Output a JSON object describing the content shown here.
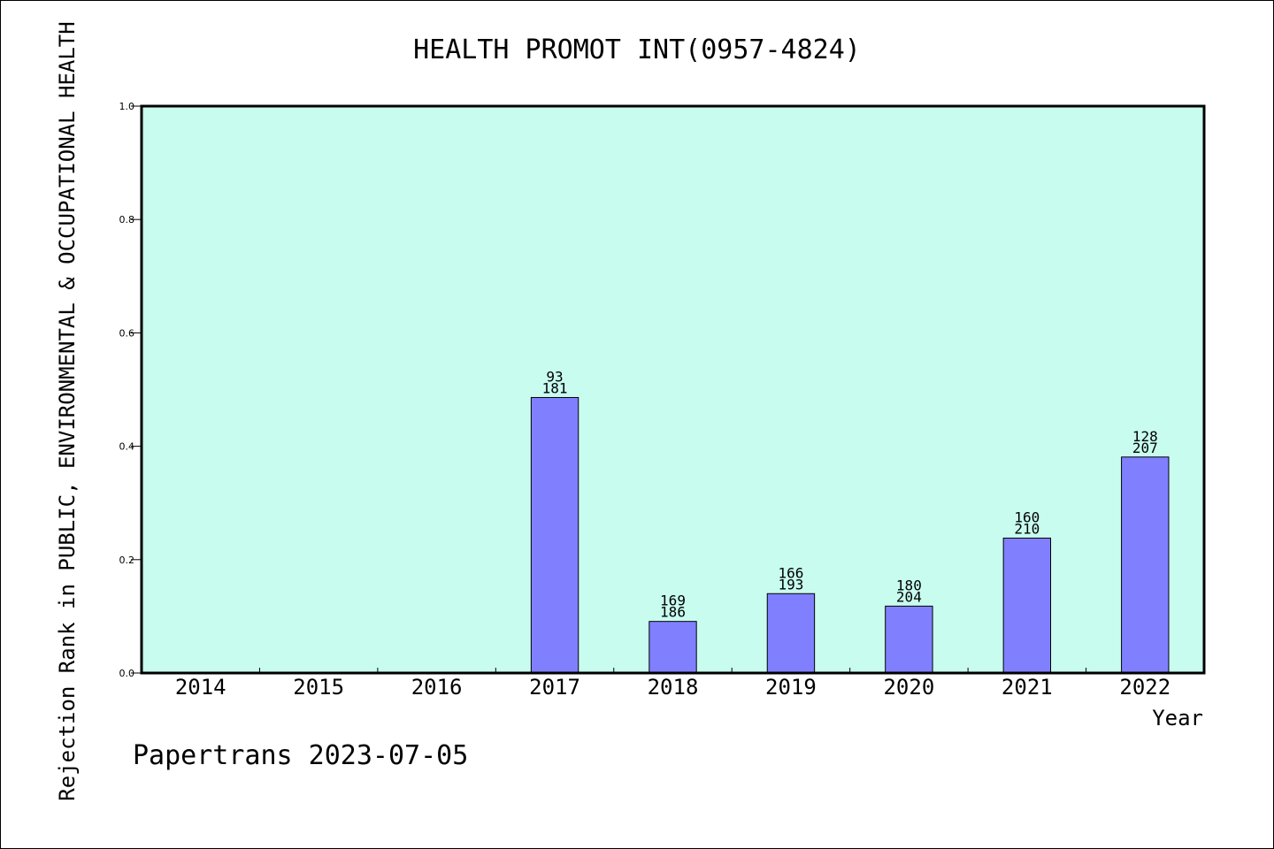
{
  "chart_data": {
    "type": "bar",
    "title": "HEALTH PROMOT INT(0957-4824)",
    "xlabel": "Year",
    "ylabel": "Rejection Rank in PUBLIC, ENVIRONMENTAL & OCCUPATIONAL HEALTH",
    "ylim": [
      0,
      1.0
    ],
    "yticks": [
      "0.0",
      "0.2",
      "0.4",
      "0.6",
      "0.8",
      "1.0"
    ],
    "categories": [
      "2014",
      "2015",
      "2016",
      "2017",
      "2018",
      "2019",
      "2020",
      "2021",
      "2022"
    ],
    "values": [
      null,
      null,
      null,
      0.486,
      0.091,
      0.14,
      0.118,
      0.238,
      0.381
    ],
    "labels_top": [
      null,
      null,
      null,
      "93",
      "169",
      "166",
      "180",
      "160",
      "128"
    ],
    "labels_bottom": [
      null,
      null,
      null,
      "181",
      "186",
      "193",
      "204",
      "210",
      "207"
    ],
    "grid": false,
    "colors": {
      "plot_bg": "#c8fcef",
      "bar": "#8080ff"
    }
  },
  "footer": "Papertrans 2023-07-05"
}
